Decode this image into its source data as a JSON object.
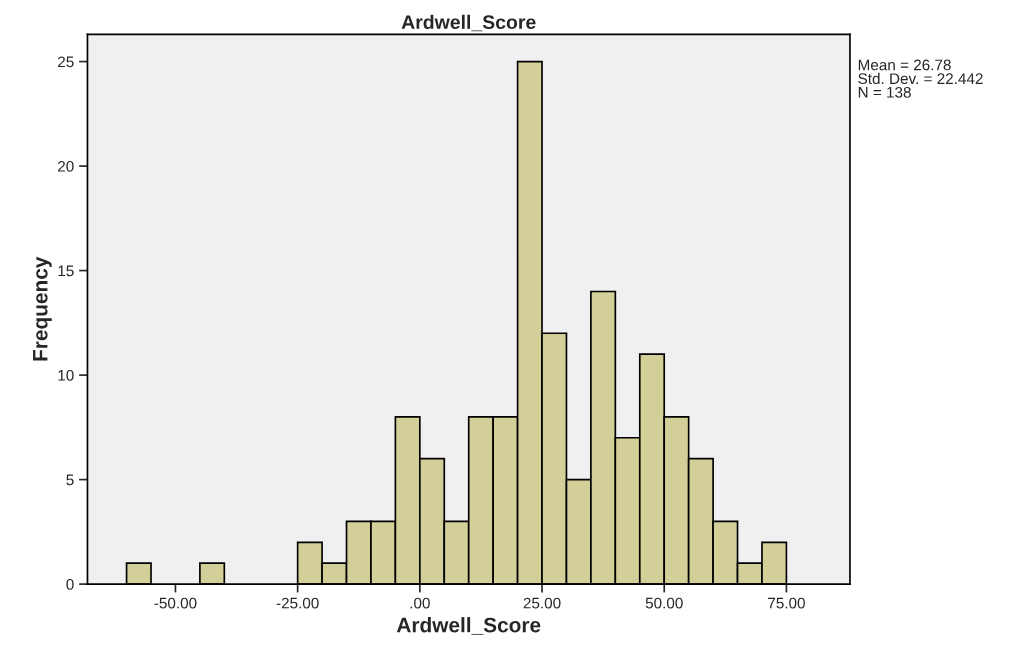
{
  "chart_data": {
    "type": "histogram",
    "title": "Ardwell_Score",
    "xlabel": "Ardwell_Score",
    "ylabel": "Frequency",
    "bins": [
      -60,
      -55,
      -50,
      -45,
      -40,
      -35,
      -30,
      -25,
      -20,
      -15,
      -10,
      -5,
      0,
      5,
      10,
      15,
      20,
      25,
      30,
      35,
      40,
      45,
      50,
      55,
      60,
      65,
      70,
      75
    ],
    "values": [
      1,
      0,
      0,
      1,
      0,
      0,
      0,
      2,
      1,
      3,
      3,
      8,
      6,
      3,
      8,
      8,
      25,
      12,
      5,
      14,
      7,
      11,
      8,
      6,
      3,
      1,
      2
    ],
    "color": "#d3cf98",
    "xlim": [
      -68,
      88
    ],
    "ylim": [
      0,
      26.3
    ],
    "xticks": [
      {
        "value": -50,
        "label": "-50.00"
      },
      {
        "value": -25,
        "label": "-25.00"
      },
      {
        "value": 0,
        "label": ".00"
      },
      {
        "value": 25,
        "label": "25.00"
      },
      {
        "value": 50,
        "label": "50.00"
      },
      {
        "value": 75,
        "label": "75.00"
      }
    ],
    "yticks": [
      0,
      5,
      10,
      15,
      20,
      25
    ],
    "annotations": [
      "Mean = 26.78",
      "Std. Dev. = 22.442",
      "N = 138"
    ],
    "grid": false
  }
}
